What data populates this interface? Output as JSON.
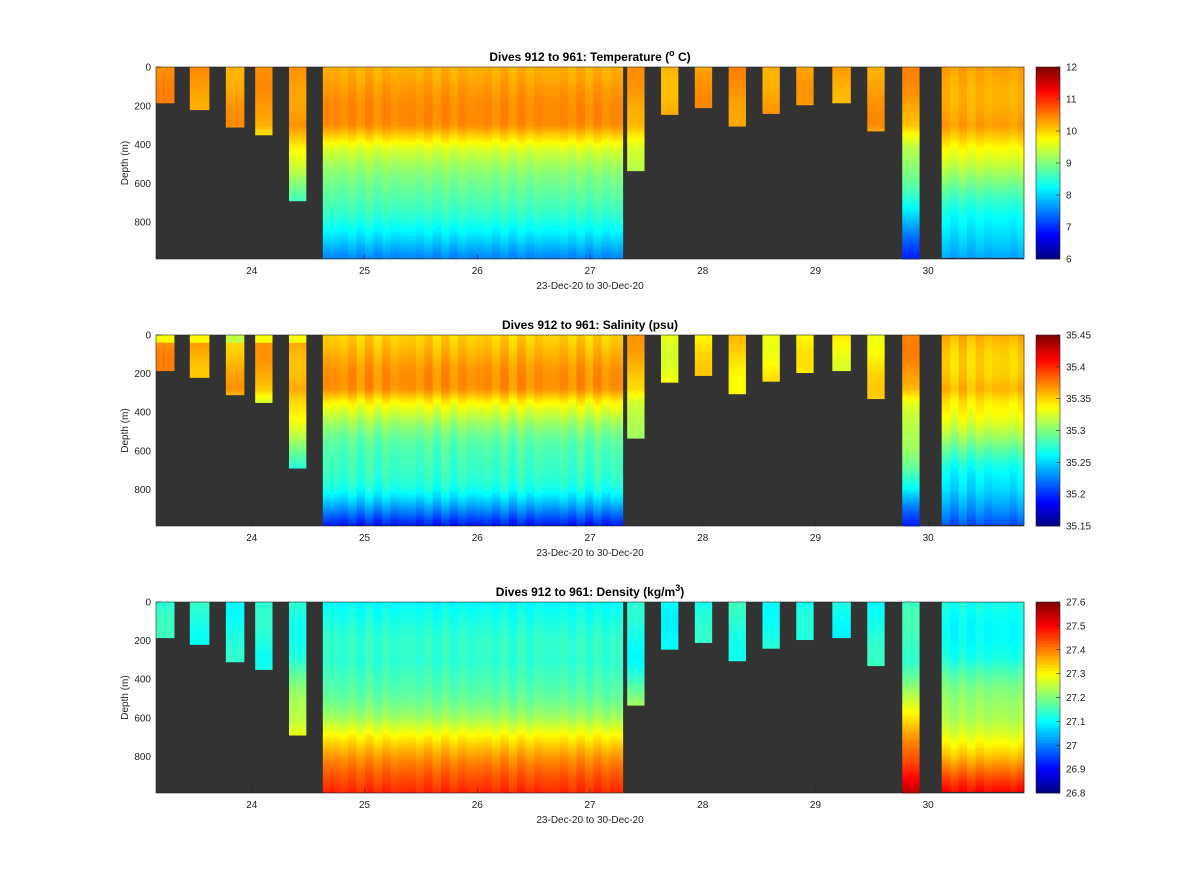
{
  "chart_data": [
    {
      "type": "heatmap",
      "variable": "temperature",
      "title": "Dives 912 to 961: Temperature (",
      "title_sup": "o",
      "title_end": " C)",
      "xlabel": "23-Dec-20 to 30-Dec-20",
      "ylabel": "Depth (m)",
      "x_ticks": [
        "24",
        "25",
        "26",
        "27",
        "28",
        "29",
        "30"
      ],
      "y_ticks": [
        "0",
        "200",
        "400",
        "600",
        "800"
      ],
      "xlim": [
        23.15,
        30.85
      ],
      "ylim": [
        0,
        990
      ],
      "clim": [
        6,
        12
      ],
      "colorbar_ticks": [
        "6",
        "7",
        "8",
        "9",
        "10",
        "11",
        "12"
      ],
      "background": "#333333"
    },
    {
      "type": "heatmap",
      "variable": "salinity",
      "title": "Dives 912 to 961: Salinity (psu)",
      "title_sup": "",
      "title_end": "",
      "xlabel": "23-Dec-20 to 30-Dec-20",
      "ylabel": "Depth (m)",
      "x_ticks": [
        "24",
        "25",
        "26",
        "27",
        "28",
        "29",
        "30"
      ],
      "y_ticks": [
        "0",
        "200",
        "400",
        "600",
        "800"
      ],
      "xlim": [
        23.15,
        30.85
      ],
      "ylim": [
        0,
        990
      ],
      "clim": [
        35.15,
        35.45
      ],
      "colorbar_ticks": [
        "35.15",
        "35.2",
        "35.25",
        "35.3",
        "35.35",
        "35.4",
        "35.45"
      ],
      "background": "#333333"
    },
    {
      "type": "heatmap",
      "variable": "density",
      "title": "Dives 912 to 961: Density (kg/m",
      "title_sup": "3",
      "title_end": ")",
      "xlabel": "23-Dec-20 to 30-Dec-20",
      "ylabel": "Depth (m)",
      "x_ticks": [
        "24",
        "25",
        "26",
        "27",
        "28",
        "29",
        "30"
      ],
      "y_ticks": [
        "0",
        "200",
        "400",
        "600",
        "800"
      ],
      "xlim": [
        23.15,
        30.85
      ],
      "ylim": [
        0,
        990
      ],
      "clim": [
        26.8,
        27.6
      ],
      "colorbar_ticks": [
        "26.8",
        "26.9",
        "27",
        "27.1",
        "27.2",
        "27.3",
        "27.4",
        "27.5",
        "27.6"
      ],
      "background": "#333333"
    }
  ],
  "profiles": {
    "dive_range": [
      912,
      961
    ],
    "profile_start": [
      23.15,
      23.45,
      23.77,
      24.03,
      24.33,
      24.63,
      27.33,
      27.63,
      27.93,
      28.23,
      28.53,
      28.83,
      29.15,
      29.46,
      29.77,
      30.12
    ],
    "profile_end": [
      23.31,
      23.62,
      23.93,
      24.18,
      24.48,
      27.29,
      27.48,
      27.78,
      28.08,
      28.38,
      28.68,
      28.98,
      29.31,
      29.61,
      29.92,
      30.85
    ],
    "max_depth": [
      185,
      220,
      310,
      350,
      690,
      990,
      535,
      245,
      210,
      305,
      240,
      195,
      185,
      330,
      990,
      990
    ]
  }
}
